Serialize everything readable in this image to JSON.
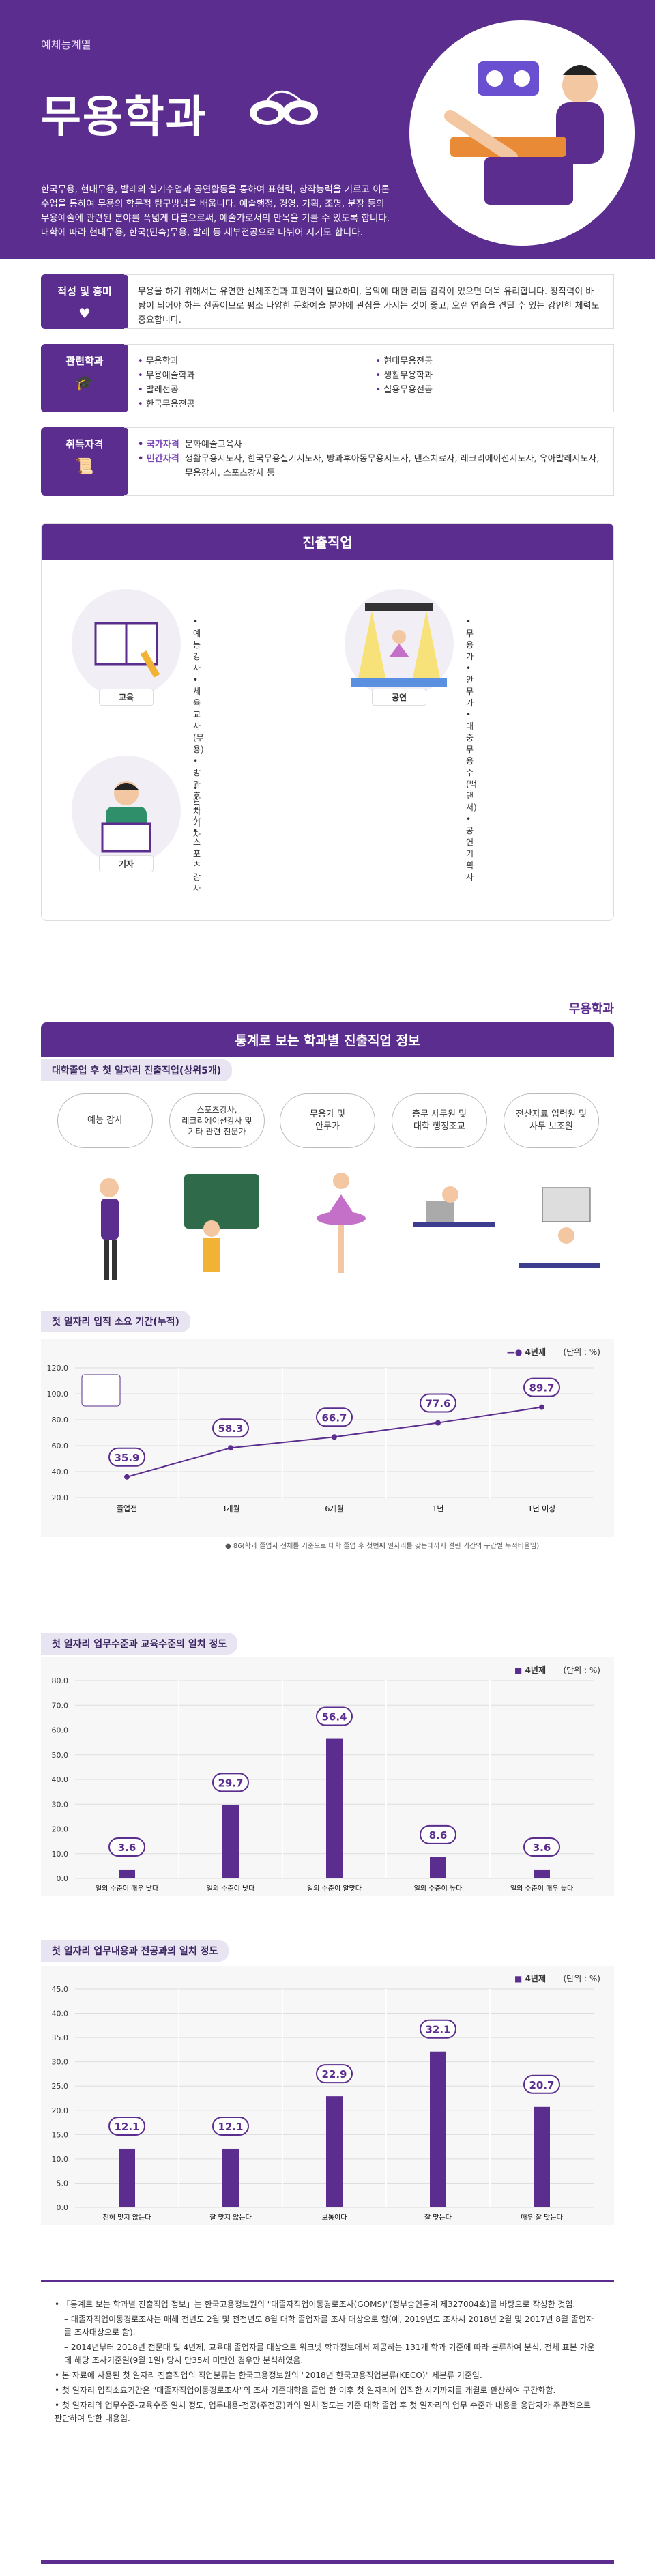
{
  "header": {
    "category": "예체능계열",
    "title": "무용학과",
    "intro": "한국무용, 현대무용, 발레의 실기수업과 공연활동을 통하여 표현력, 창작능력을 기르고 이론수업을 통하여 무용의 학문적 탐구방법을 배웁니다. 예술행정, 경영, 기획, 조명, 분장 등의 무용예술에 관련된 분야를 폭넓게 다룸으로써, 예술가로서의 안목을 기를 수 있도록 합니다. 대학에 따라 현대무용, 한국(민속)무용, 발레 등 세부전공으로 나뉘어 지기도 합니다."
  },
  "aptitude": {
    "label": "적성 및 흥미",
    "text": "무용을 하기 위해서는 유연한 신체조건과 표현력이 필요하며, 음악에 대한 리듬 감각이 있으면 더욱 유리합니다. 창작력이 바탕이 되어야 하는 전공이므로 평소 다양한 문화예술 분야에 관심을 가지는 것이 좋고, 오랜 연습을 견딜 수 있는 강인한 체력도 중요합니다."
  },
  "related": {
    "label": "관련학과",
    "left": [
      "무용학과",
      "무용예술학과",
      "발레전공",
      "한국무용전공"
    ],
    "right": [
      "현대무용전공",
      "생활무용학과",
      "실용무용전공"
    ]
  },
  "license": {
    "label": "취득자격",
    "national_tag": "국가자격",
    "national": "문화예술교육사",
    "private_tag": "민간자격",
    "private": "생활무용지도사, 한국무용실기지도사, 방과후아동무용지도사, 댄스치료사, 레크리에이션지도사, 유아발레지도사, 무용강사, 스포츠강사 등"
  },
  "careers": {
    "title": "진출직업",
    "groups": [
      {
        "label": "교육",
        "items": [
          "예능강사",
          "체육교사(무용)",
          "방과후교사",
          "스포츠강사"
        ]
      },
      {
        "label": "공연",
        "items": [
          "무용가",
          "안무가",
          "대중무용수(백댄서)",
          "공연기획자"
        ]
      },
      {
        "label": "기자",
        "items": [
          "잡지기자"
        ]
      }
    ]
  },
  "stats": {
    "major": "무용학과",
    "title": "통계로 보는 학과별 진출직업 정보",
    "jobs_title": "대학졸업 후 첫 일자리 진출직업(상위5개)",
    "jobs": [
      "예능 강사",
      "스포츠강사,\n레크리에이션강사 및\n기타 관련 전문가",
      "무용가 및\n안무가",
      "총무 사무원 및\n대학 행정조교",
      "전산자료 입력원 및\n사무 보조원"
    ],
    "c1_title": "첫 일자리 입직 소요 기간(누적)",
    "c2_title": "첫 일자리 업무수준과 교육수준의 일치 정도",
    "c3_title": "첫 일자리 업무내용과 전공과의 일치 정도",
    "c1_note": "● 86(학과 졸업자 전체를 기준으로 대학 졸업 후 첫번째 일자리를 갖는데까지 걸린 기간의 구간별 누적비율임)",
    "legend": "4년제",
    "unit": "(단위 : %)"
  },
  "chart_data": [
    {
      "type": "line",
      "categories": [
        "졸업전",
        "3개월",
        "6개월",
        "1년",
        "1년 이상"
      ],
      "values": [
        35.9,
        58.3,
        66.7,
        77.6,
        89.7
      ],
      "ylim": [
        20,
        120
      ],
      "yticks": [
        20.0,
        40.0,
        60.0,
        80.0,
        100.0,
        120.0
      ]
    },
    {
      "type": "bar",
      "categories": [
        "일의 수준이 매우 낮다",
        "일의 수준이 낮다",
        "일의 수준이 알맞다",
        "일의 수준이 높다",
        "일의 수준이 매우 높다"
      ],
      "values": [
        3.6,
        29.7,
        56.4,
        8.6,
        3.6
      ],
      "ylim": [
        0,
        80
      ],
      "yticks": [
        0.0,
        10.0,
        20.0,
        30.0,
        40.0,
        50.0,
        60.0,
        70.0,
        80.0
      ]
    },
    {
      "type": "bar",
      "categories": [
        "전혀 맞지 않는다",
        "잘 맞지 않는다",
        "보통이다",
        "잘 맞는다",
        "매우 잘 맞는다"
      ],
      "values": [
        12.1,
        12.1,
        22.9,
        32.1,
        20.7
      ],
      "ylim": [
        0,
        45
      ],
      "yticks": [
        0.0,
        5.0,
        10.0,
        15.0,
        20.0,
        25.0,
        30.0,
        35.0,
        40.0,
        45.0
      ]
    }
  ],
  "footnotes": [
    {
      "t": "• 「통계로 보는 학과별 진출직업 정보」는 한국고용정보원의 \"대졸자직업이동경로조사(GOMS)\"(정부승인통계 제327004호)를 바탕으로 작성한 것임.",
      "ind": false
    },
    {
      "t": "– 대졸자직업이동경로조사는 매해 전년도 2월 및 전전년도 8월 대학 졸업자를 조사 대상으로 함(예, 2019년도 조사시 2018년 2월 및 2017년 8월 졸업자를 조사대상으로 함).",
      "ind": true
    },
    {
      "t": "– 2014년부터 2018년 전문대 및 4년제, 교육대 졸업자를 대상으로 워크넷 학과정보에서 제공하는 131개 학과 기준에 따라 분류하여 분석, 전체 표본 가운데 해당 조사기준일(9월 1일) 당시 만35세 미만인 경우만 분석하였음.",
      "ind": true
    },
    {
      "t": "• 본 자료에 사용된 첫 일자리 진출직업의 직업분류는 한국고용정보원의 \"2018년 한국고용직업분류(KECO)\" 세분류 기준임.",
      "ind": false
    },
    {
      "t": "• 첫 일자리 입직소요기간은 \"대졸자직업이동경로조사\"의 조사 기준대학을 졸업 한 이후 첫 일자리에 입직한 시기까지를 개월로 환산하여 구간화함.",
      "ind": false
    },
    {
      "t": "• 첫 일자리의 업무수준-교육수준 일치 정도, 업무내용-전공(주전공)과의 일치 정도는 기준 대학 졸업 후 첫 일자리의 업무 수준과 내용을 응답자가 주관적으로 판단하여 답한 내용임.",
      "ind": false
    }
  ]
}
